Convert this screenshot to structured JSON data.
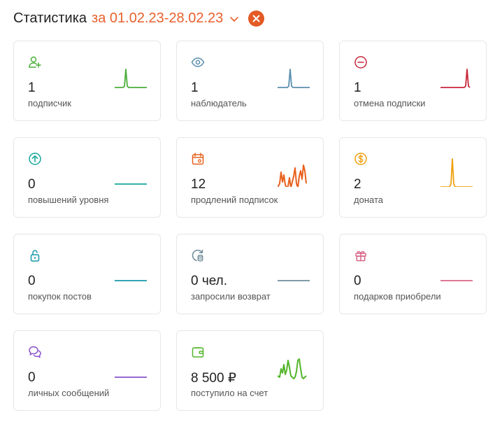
{
  "header": {
    "title": "Статистика",
    "period": "за 01.02.23-28.02.23"
  },
  "cards": [
    {
      "value": "1",
      "label": "подписчик",
      "icon": "user-plus-icon",
      "color": "#4caf3a"
    },
    {
      "value": "1",
      "label": "наблюдатель",
      "icon": "eye-icon",
      "color": "#5a8fae"
    },
    {
      "value": "1",
      "label": "отмена подписки",
      "icon": "minus-circle-icon",
      "color": "#c8283c"
    },
    {
      "value": "0",
      "label": "повышений уровня",
      "icon": "arrow-up-circle-icon",
      "color": "#16a79b"
    },
    {
      "value": "12",
      "label": "продлений подписок",
      "icon": "calendar-refresh-icon",
      "color": "#e8601c"
    },
    {
      "value": "2",
      "label": "доната",
      "icon": "dollar-coin-icon",
      "color": "#f0a010"
    },
    {
      "value": "0",
      "label": "покупок постов",
      "icon": "unlock-icon",
      "color": "#1598a8"
    },
    {
      "value": "0 чел.",
      "label": "запросили возврат",
      "icon": "refund-coins-icon",
      "color": "#6f8c99"
    },
    {
      "value": "0",
      "label": "подарков приобрели",
      "icon": "gift-icon",
      "color": "#d86587"
    },
    {
      "value": "0",
      "label": "личных сообщений",
      "icon": "chat-bubbles-icon",
      "color": "#8a52cc"
    },
    {
      "value": "8 500 ₽",
      "label": "поступило на счет",
      "icon": "wallet-icon",
      "color": "#52b52a"
    }
  ]
}
